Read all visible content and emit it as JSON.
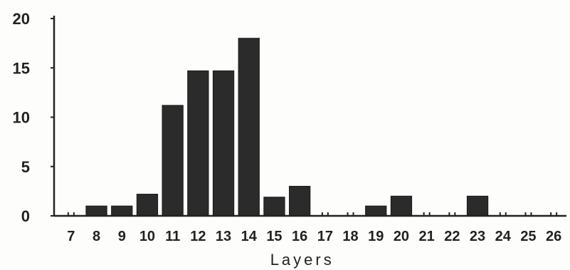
{
  "chart_data": {
    "type": "bar",
    "title": "",
    "xlabel": "Layers",
    "ylabel": "",
    "ylim": [
      0,
      20
    ],
    "yticks": [
      0,
      5,
      10,
      15,
      20
    ],
    "grid": false,
    "categories": [
      "7",
      "8",
      "9",
      "10",
      "11",
      "12",
      "13",
      "14",
      "15",
      "16",
      "17",
      "18",
      "19",
      "20",
      "21",
      "22",
      "23",
      "24",
      "25",
      "26"
    ],
    "values": [
      0,
      1,
      1,
      2.2,
      11.2,
      14.7,
      14.7,
      18,
      1.9,
      3,
      0,
      0,
      1,
      2,
      0,
      0,
      2,
      0,
      0,
      0
    ],
    "colors": {
      "bar": "#2b2b2b",
      "axis": "#222222",
      "text": "#222222"
    }
  }
}
